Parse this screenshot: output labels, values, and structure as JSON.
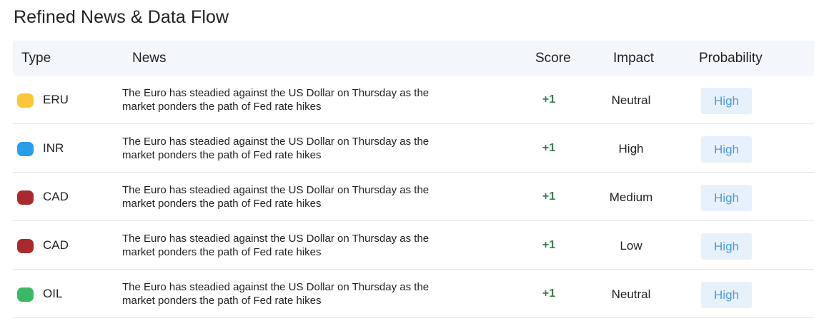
{
  "title": "Refined News & Data Flow",
  "headers": {
    "type": "Type",
    "news": "News",
    "score": "Score",
    "impact": "Impact",
    "probability": "Probability"
  },
  "colors": {
    "yellow": "#fcc53a",
    "blue": "#2a9de8",
    "red": "#a82a2f",
    "green": "#3cb865",
    "score_green": "#3f7a4c",
    "probability_text": "#4d9ad6",
    "probability_bg": "#e7f1fb",
    "header_bg": "#f3f7fb"
  },
  "rows": [
    {
      "dot_color": "#fcc53a",
      "type": "ERU",
      "news_line1": "The Euro has steadied against the US Dollar on Thursday as the",
      "news_line2": "market ponders the path of  Fed rate hikes",
      "score": "+1",
      "impact": "Neutral",
      "probability": "High"
    },
    {
      "dot_color": "#2a9de8",
      "type": "INR",
      "news_line1": "The Euro has steadied against the US Dollar on Thursday as the",
      "news_line2": "market ponders the path of  Fed rate hikes",
      "score": "+1",
      "impact": "High",
      "probability": "High"
    },
    {
      "dot_color": "#a82a2f",
      "type": "CAD",
      "news_line1": "The Euro has steadied against the US Dollar on Thursday as the",
      "news_line2": "market ponders the path of  Fed rate hikes",
      "score": "+1",
      "impact": "Medium",
      "probability": "High"
    },
    {
      "dot_color": "#a82a2f",
      "type": "CAD",
      "news_line1": "The Euro has steadied against the US Dollar on Thursday as the",
      "news_line2": "market ponders the path of  Fed rate hikes",
      "score": "+1",
      "impact": "Low",
      "probability": "High"
    },
    {
      "dot_color": "#3cb865",
      "type": "OIL",
      "news_line1": "The Euro has steadied against the US Dollar on Thursday as the",
      "news_line2": "market ponders the path of  Fed rate hikes",
      "score": "+1",
      "impact": "Neutral",
      "probability": "High"
    }
  ]
}
